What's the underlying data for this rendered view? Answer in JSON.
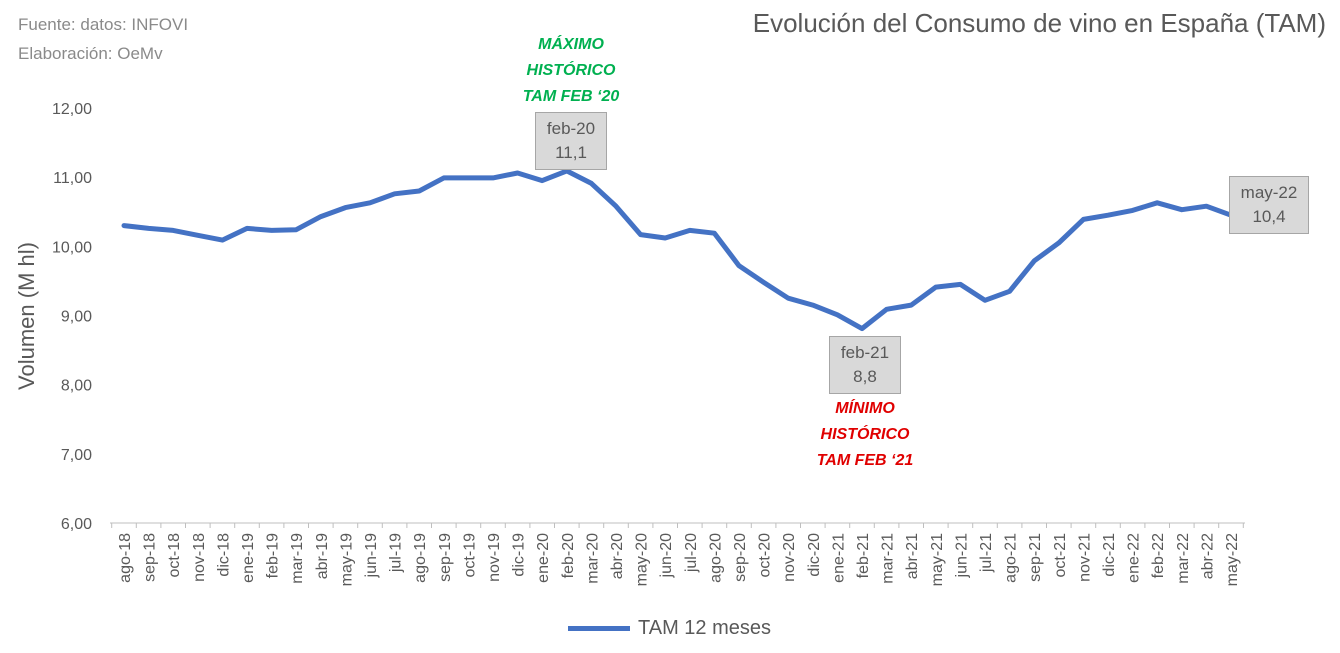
{
  "source_lines": [
    "Fuente: datos: INFOVI",
    "Elaboración: OeMv"
  ],
  "chart_data": {
    "type": "line",
    "title": "Evolución del Consumo de vino en España (TAM)",
    "xlabel": "",
    "ylabel": "Volumen (M hl)",
    "ylim": [
      6,
      12
    ],
    "yticks": [
      "6,00",
      "7,00",
      "8,00",
      "9,00",
      "10,00",
      "11,00",
      "12,00"
    ],
    "categories": [
      "ago-18",
      "sep-18",
      "oct-18",
      "nov-18",
      "dic-18",
      "ene-19",
      "feb-19",
      "mar-19",
      "abr-19",
      "may-19",
      "jun-19",
      "jul-19",
      "ago-19",
      "sep-19",
      "oct-19",
      "nov-19",
      "dic-19",
      "ene-20",
      "feb-20",
      "mar-20",
      "abr-20",
      "may-20",
      "jun-20",
      "jul-20",
      "ago-20",
      "sep-20",
      "oct-20",
      "nov-20",
      "dic-20",
      "ene-21",
      "feb-21",
      "mar-21",
      "abr-21",
      "may-21",
      "jun-21",
      "jul-21",
      "ago-21",
      "sep-21",
      "oct-21",
      "nov-21",
      "dic-21",
      "ene-22",
      "feb-22",
      "mar-22",
      "abr-22",
      "may-22"
    ],
    "series": [
      {
        "name": "TAM 12 meses",
        "color": "#4472c4",
        "values": [
          10.3,
          10.26,
          10.23,
          10.16,
          10.09,
          10.26,
          10.23,
          10.24,
          10.43,
          10.56,
          10.63,
          10.76,
          10.8,
          10.99,
          10.99,
          10.99,
          11.06,
          10.95,
          11.09,
          10.91,
          10.58,
          10.17,
          10.12,
          10.23,
          10.19,
          9.72,
          9.48,
          9.25,
          9.15,
          9.01,
          8.81,
          9.09,
          9.15,
          9.41,
          9.45,
          9.22,
          9.35,
          9.79,
          10.05,
          10.39,
          10.45,
          10.52,
          10.63,
          10.53,
          10.58,
          10.45
        ]
      }
    ],
    "callouts": [
      {
        "label": "feb-20",
        "value": "11,1"
      },
      {
        "label": "feb-21",
        "value": "8,8"
      },
      {
        "label": "may-22",
        "value": "10,4"
      }
    ],
    "annotations": [
      {
        "lines": [
          "MÁXIMO",
          "HISTÓRICO",
          "TAM FEB ‘20"
        ],
        "color": "#00b050"
      },
      {
        "lines": [
          "MÍNIMO",
          "HISTÓRICO",
          "TAM FEB ‘21"
        ],
        "color": "#e00000"
      }
    ],
    "legend": {
      "label": "TAM 12 meses",
      "position": "bottom"
    }
  }
}
